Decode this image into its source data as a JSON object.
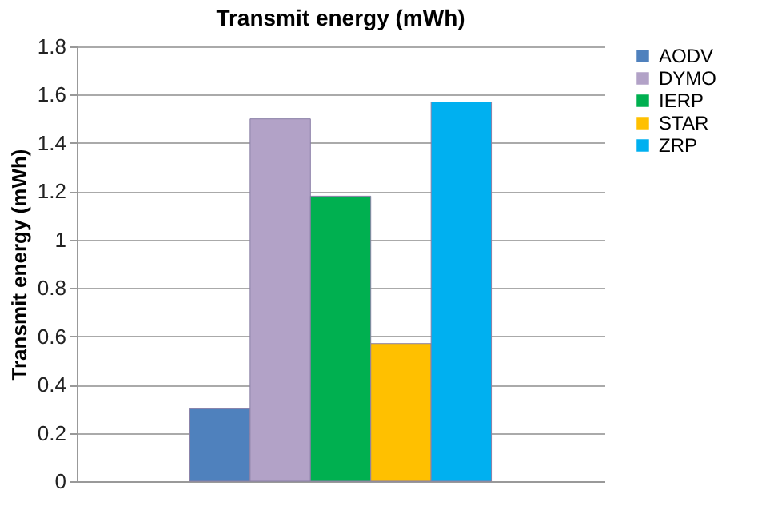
{
  "chart_data": {
    "type": "bar",
    "title": "Transmit energy (mWh)",
    "ylabel": "Transmit energy (mWh)",
    "categories": [
      null
    ],
    "series": [
      {
        "name": "AODV",
        "color": "#4f81bd",
        "values": [
          0.3
        ]
      },
      {
        "name": "DYMO",
        "color": "#b2a2c7",
        "values": [
          1.5
        ]
      },
      {
        "name": "IERP",
        "color": "#00b050",
        "values": [
          1.18
        ]
      },
      {
        "name": "STAR",
        "color": "#ffc000",
        "values": [
          0.57
        ]
      },
      {
        "name": "ZRP",
        "color": "#00b0f0",
        "values": [
          1.57
        ]
      }
    ],
    "ylim": [
      0,
      1.8
    ],
    "yticks": [
      0,
      0.2,
      0.4,
      0.6,
      0.8,
      1,
      1.2,
      1.4,
      1.6,
      1.8
    ],
    "grid": "y",
    "legend": "right",
    "tick_labels": "y"
  }
}
